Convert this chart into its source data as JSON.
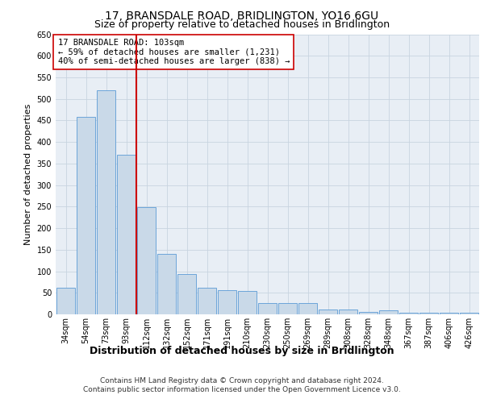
{
  "title": "17, BRANSDALE ROAD, BRIDLINGTON, YO16 6GU",
  "subtitle": "Size of property relative to detached houses in Bridlington",
  "xlabel": "Distribution of detached houses by size in Bridlington",
  "ylabel": "Number of detached properties",
  "categories": [
    "34sqm",
    "54sqm",
    "73sqm",
    "93sqm",
    "112sqm",
    "132sqm",
    "152sqm",
    "171sqm",
    "191sqm",
    "210sqm",
    "230sqm",
    "250sqm",
    "269sqm",
    "289sqm",
    "308sqm",
    "328sqm",
    "348sqm",
    "367sqm",
    "387sqm",
    "406sqm",
    "426sqm"
  ],
  "values": [
    62,
    458,
    520,
    370,
    248,
    140,
    93,
    62,
    57,
    55,
    26,
    26,
    27,
    11,
    12,
    6,
    9,
    3,
    4,
    4,
    3
  ],
  "bar_color": "#c9d9e8",
  "bar_edge_color": "#5b9bd5",
  "grid_color": "#c8d4e0",
  "background_color": "#e8eef5",
  "vline_color": "#cc0000",
  "annotation_text": "17 BRANSDALE ROAD: 103sqm\n← 59% of detached houses are smaller (1,231)\n40% of semi-detached houses are larger (838) →",
  "annotation_box_color": "#ffffff",
  "annotation_box_edge_color": "#cc0000",
  "ylim": [
    0,
    650
  ],
  "yticks": [
    0,
    50,
    100,
    150,
    200,
    250,
    300,
    350,
    400,
    450,
    500,
    550,
    600,
    650
  ],
  "footer_line1": "Contains HM Land Registry data © Crown copyright and database right 2024.",
  "footer_line2": "Contains public sector information licensed under the Open Government Licence v3.0.",
  "title_fontsize": 10,
  "subtitle_fontsize": 9,
  "annotation_fontsize": 7.5,
  "ylabel_fontsize": 8,
  "xlabel_fontsize": 9,
  "tick_fontsize": 7,
  "footer_fontsize": 6.5
}
